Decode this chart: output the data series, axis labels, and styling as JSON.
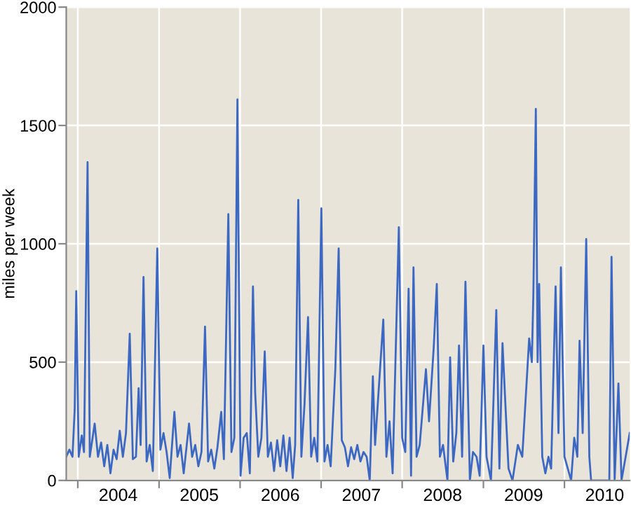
{
  "chart_data": {
    "type": "line",
    "ylabel": "miles per week",
    "xlim": [
      "2003-11-10",
      "2010-10-22"
    ],
    "ylim": [
      0,
      2000
    ],
    "yticks": [
      0,
      500,
      1000,
      1500,
      2000
    ],
    "xticks": [
      {
        "value": "2004-01-01",
        "label": null
      },
      {
        "value": "2005-01-01",
        "label": null
      },
      {
        "value": "2006-01-01",
        "label": null
      },
      {
        "value": "2007-01-01",
        "label": null
      },
      {
        "value": "2008-01-01",
        "label": null
      },
      {
        "value": "2009-01-01",
        "label": null
      },
      {
        "value": "2010-01-01",
        "label": null
      },
      {
        "value": "2004-07-01",
        "label": "2004"
      },
      {
        "value": "2005-07-01",
        "label": "2005"
      },
      {
        "value": "2006-07-01",
        "label": "2006"
      },
      {
        "value": "2007-07-01",
        "label": "2007"
      },
      {
        "value": "2008-07-01",
        "label": "2008"
      },
      {
        "value": "2009-07-01",
        "label": "2009"
      },
      {
        "value": "2010-07-01",
        "label": "2010"
      }
    ],
    "grid": true,
    "marker": "none",
    "line_style": "solid",
    "x": [
      "2003-11-10",
      "2003-11-24",
      "2003-12-08",
      "2003-12-18",
      "2003-12-25",
      "2004-01-05",
      "2004-01-19",
      "2004-01-29",
      "2004-02-14",
      "2004-02-24",
      "2004-03-17",
      "2004-04-01",
      "2004-04-15",
      "2004-04-29",
      "2004-05-13",
      "2004-05-27",
      "2004-06-10",
      "2004-06-24",
      "2004-07-08",
      "2004-07-22",
      "2004-08-05",
      "2004-08-22",
      "2004-09-05",
      "2004-09-19",
      "2004-10-01",
      "2004-10-10",
      "2004-10-23",
      "2004-11-06",
      "2004-11-20",
      "2004-12-04",
      "2004-12-24",
      "2005-01-07",
      "2005-01-21",
      "2005-02-04",
      "2005-02-18",
      "2005-03-11",
      "2005-03-25",
      "2005-04-08",
      "2005-04-22",
      "2005-05-16",
      "2005-05-30",
      "2005-06-13",
      "2005-06-27",
      "2005-07-11",
      "2005-07-27",
      "2005-08-10",
      "2005-08-24",
      "2005-09-07",
      "2005-09-21",
      "2005-10-08",
      "2005-10-20",
      "2005-11-09",
      "2005-11-23",
      "2005-12-06",
      "2005-12-20",
      "2006-01-03",
      "2006-01-17",
      "2006-01-31",
      "2006-02-14",
      "2006-02-28",
      "2006-03-10",
      "2006-03-24",
      "2006-04-07",
      "2006-04-22",
      "2006-05-06",
      "2006-05-20",
      "2006-06-03",
      "2006-06-17",
      "2006-07-01",
      "2006-07-15",
      "2006-07-29",
      "2006-08-12",
      "2006-08-26",
      "2006-09-06",
      "2006-09-20",
      "2006-10-04",
      "2006-10-18",
      "2006-11-03",
      "2006-11-17",
      "2006-12-01",
      "2006-12-15",
      "2007-01-02",
      "2007-01-16",
      "2007-01-30",
      "2007-02-13",
      "2007-03-06",
      "2007-03-21",
      "2007-04-04",
      "2007-04-18",
      "2007-05-02",
      "2007-05-16",
      "2007-05-30",
      "2007-06-13",
      "2007-06-27",
      "2007-07-11",
      "2007-07-25",
      "2007-08-08",
      "2007-08-22",
      "2007-09-01",
      "2007-10-08",
      "2007-10-22",
      "2007-11-05",
      "2007-11-19",
      "2007-12-17",
      "2008-01-01",
      "2008-01-15",
      "2008-01-30",
      "2008-02-10",
      "2008-02-21",
      "2008-03-06",
      "2008-03-20",
      "2008-04-17",
      "2008-05-01",
      "2008-05-22",
      "2008-06-05",
      "2008-06-19",
      "2008-07-03",
      "2008-07-23",
      "2008-08-04",
      "2008-08-18",
      "2008-09-01",
      "2008-09-13",
      "2008-09-27",
      "2008-10-12",
      "2008-11-01",
      "2008-11-15",
      "2008-12-01",
      "2008-12-15",
      "2009-01-01",
      "2009-01-15",
      "2009-02-04",
      "2009-02-28",
      "2009-03-14",
      "2009-03-28",
      "2009-04-10",
      "2009-04-24",
      "2009-05-12",
      "2009-06-05",
      "2009-06-25",
      "2009-07-26",
      "2009-08-07",
      "2009-08-14",
      "2009-08-25",
      "2009-09-02",
      "2009-09-09",
      "2009-09-23",
      "2009-10-07",
      "2009-10-21",
      "2009-11-02",
      "2009-11-22",
      "2009-12-05",
      "2009-12-16",
      "2010-01-01",
      "2010-01-31",
      "2010-02-14",
      "2010-02-28",
      "2010-03-10",
      "2010-03-24",
      "2010-04-09",
      "2010-04-23",
      "2010-05-01",
      "2010-07-22",
      "2010-08-01",
      "2010-08-15",
      "2010-09-01",
      "2010-09-15",
      "2010-10-22"
    ],
    "series": [
      {
        "color": "#3d68c2",
        "values": [
          100,
          130,
          100,
          300,
          800,
          100,
          190,
          120,
          1345,
          100,
          240,
          100,
          160,
          60,
          150,
          30,
          130,
          90,
          210,
          100,
          200,
          620,
          90,
          100,
          390,
          150,
          860,
          80,
          150,
          40,
          980,
          130,
          200,
          120,
          10,
          290,
          100,
          150,
          30,
          240,
          100,
          150,
          60,
          120,
          650,
          80,
          130,
          50,
          140,
          290,
          90,
          1125,
          120,
          180,
          1610,
          20,
          180,
          200,
          30,
          820,
          370,
          100,
          180,
          545,
          100,
          160,
          40,
          170,
          60,
          190,
          40,
          180,
          10,
          150,
          1185,
          100,
          320,
          690,
          100,
          180,
          80,
          1150,
          80,
          150,
          60,
          470,
          980,
          170,
          140,
          60,
          140,
          90,
          150,
          80,
          120,
          100,
          0,
          440,
          150,
          680,
          100,
          250,
          30,
          1070,
          180,
          120,
          810,
          20,
          900,
          100,
          150,
          470,
          250,
          560,
          830,
          100,
          150,
          0,
          520,
          80,
          200,
          570,
          100,
          840,
          0,
          120,
          100,
          20,
          570,
          100,
          0,
          720,
          50,
          580,
          320,
          50,
          0,
          150,
          100,
          600,
          500,
          790,
          1570,
          500,
          830,
          100,
          30,
          100,
          50,
          820,
          200,
          900,
          100,
          0,
          180,
          100,
          590,
          200,
          1020,
          100,
          0,
          0,
          945,
          0,
          410,
          0,
          200
        ]
      }
    ]
  }
}
